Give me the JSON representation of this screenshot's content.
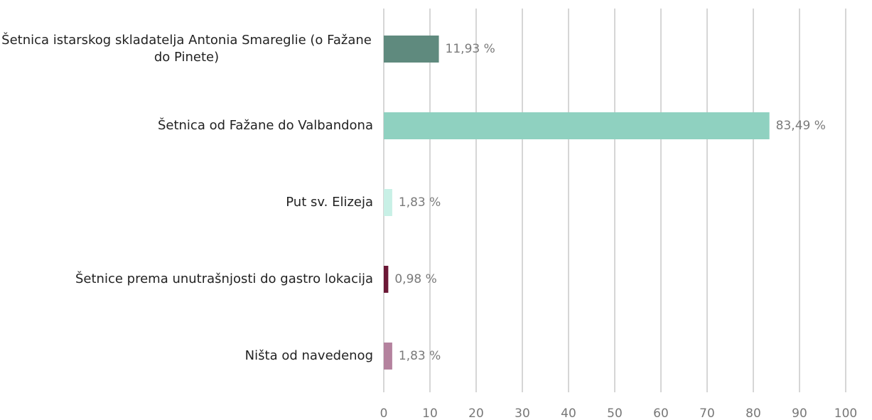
{
  "chart_data": {
    "type": "bar",
    "orientation": "horizontal",
    "categories": [
      "Šetnica istarskog skladatelja Antonia Smareglie (o Fažane do Pinete)",
      "Šetnica od Fažane do Valbandona",
      "Put sv. Elizeja",
      "Šetnice prema unutrašnjosti do gastro lokacija",
      "Ništa od navedenog"
    ],
    "values": [
      11.93,
      83.49,
      1.83,
      0.98,
      1.83
    ],
    "value_labels": [
      "11,93 %",
      "83,49 %",
      "1,83 %",
      "0,98 %",
      "1,83 %"
    ],
    "colors": [
      "#5f8a7e",
      "#8fd1c0",
      "#c8f0e6",
      "#6b1836",
      "#b4829e"
    ],
    "xlim": [
      0,
      100
    ],
    "xticks": [
      0,
      10,
      20,
      30,
      40,
      50,
      60,
      70,
      80,
      90,
      100
    ],
    "grid": true
  }
}
